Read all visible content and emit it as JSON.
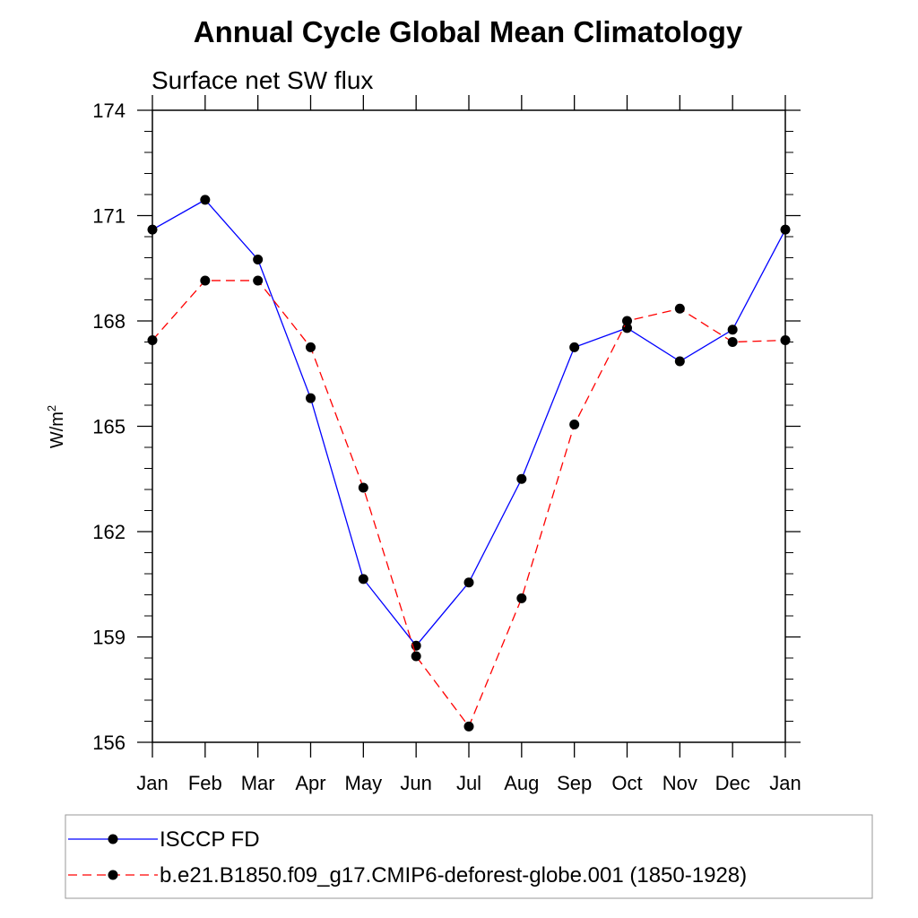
{
  "chart_data": {
    "type": "line",
    "title": "Annual Cycle Global Mean Climatology",
    "subtitle": "Surface net SW flux",
    "ylabel": "W/m",
    "ylabel_sup": "2",
    "ylim": [
      156,
      174
    ],
    "yticks": [
      156,
      159,
      162,
      165,
      168,
      171,
      174
    ],
    "categories": [
      "Jan",
      "Feb",
      "Mar",
      "Apr",
      "May",
      "Jun",
      "Jul",
      "Aug",
      "Sep",
      "Oct",
      "Nov",
      "Dec",
      "Jan"
    ],
    "series": [
      {
        "name": "ISCCP FD",
        "color": "#0000ff",
        "dash": "solid",
        "values": [
          170.6,
          171.45,
          169.75,
          165.8,
          160.65,
          158.75,
          160.55,
          163.5,
          167.25,
          167.8,
          166.85,
          167.75,
          170.6
        ]
      },
      {
        "name": "b.e21.B1850.f09_g17.CMIP6-deforest-globe.001 (1850-1928)",
        "color": "#ff0000",
        "dash": "dashed",
        "values": [
          167.45,
          169.15,
          169.15,
          167.25,
          163.25,
          158.45,
          156.45,
          160.1,
          165.05,
          168.0,
          168.35,
          167.4,
          167.45
        ]
      }
    ],
    "legend_position": "bottom",
    "grid": false
  }
}
